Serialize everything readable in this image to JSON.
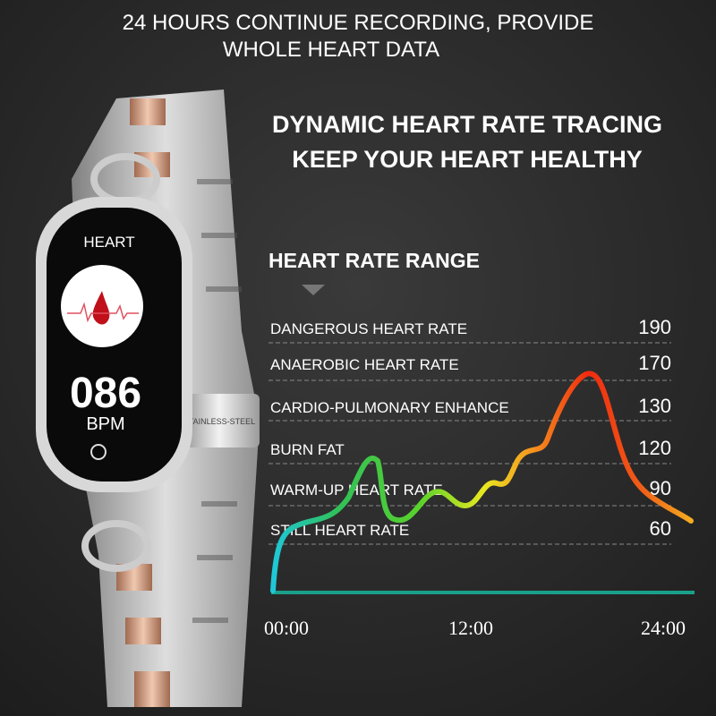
{
  "header": {
    "lines": [
      "24 HOURS CONTINUE RECORDING, PROVIDE",
      "WHOLE HEART DATA"
    ]
  },
  "headline": {
    "lines": [
      "DYNAMIC HEART RATE TRACING",
      "KEEP YOUR HEART HEALTHY"
    ]
  },
  "range_title": "HEART RATE RANGE",
  "zones": [
    {
      "label": "DANGEROUS HEART RATE",
      "value": 190
    },
    {
      "label": "ANAEROBIC HEART RATE",
      "value": 170
    },
    {
      "label": "CARDIO-PULMONARY ENHANCE",
      "value": 130
    },
    {
      "label": "BURN FAT",
      "value": 120
    },
    {
      "label": "WARM-UP HEART RATE",
      "value": 90
    },
    {
      "label": "STILL HEART RATE",
      "value": 60
    }
  ],
  "times": [
    "00:00",
    "12:00",
    "24:00"
  ],
  "watch": {
    "screen_title": "HEART",
    "reading": "086",
    "unit": "BPM",
    "clasp": "STAINLESS-STEEL"
  }
}
